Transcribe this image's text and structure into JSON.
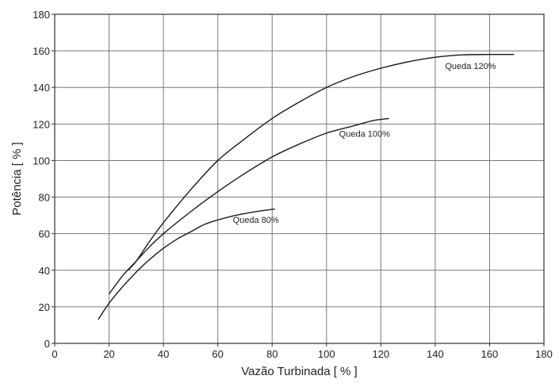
{
  "chart_data": {
    "type": "line",
    "title": "",
    "xlabel": "Vazão Turbinada [ % ]",
    "ylabel": "Potência  [ % ]",
    "xlim": [
      0,
      180
    ],
    "ylim": [
      0,
      180
    ],
    "x_ticks": [
      0,
      20,
      40,
      60,
      80,
      100,
      120,
      140,
      160,
      180
    ],
    "y_ticks": [
      0,
      20,
      40,
      60,
      80,
      100,
      120,
      140,
      160,
      180
    ],
    "grid": true,
    "legend": "none",
    "series": [
      {
        "name": "Queda 80%",
        "label_anchor": [
          74,
          66
        ],
        "points": [
          [
            16,
            13
          ],
          [
            20,
            22
          ],
          [
            25,
            31
          ],
          [
            30,
            39
          ],
          [
            35,
            46
          ],
          [
            40,
            52
          ],
          [
            45,
            57
          ],
          [
            50,
            61
          ],
          [
            55,
            65
          ],
          [
            60,
            67.5
          ],
          [
            65,
            69.5
          ],
          [
            70,
            71
          ],
          [
            75,
            72.3
          ],
          [
            81,
            73.5
          ]
        ]
      },
      {
        "name": "Queda 100%",
        "label_anchor": [
          114,
          113
        ],
        "points": [
          [
            20,
            27
          ],
          [
            25,
            37
          ],
          [
            30,
            45
          ],
          [
            35,
            53
          ],
          [
            40,
            60
          ],
          [
            50,
            72
          ],
          [
            60,
            83
          ],
          [
            70,
            93
          ],
          [
            80,
            102
          ],
          [
            90,
            109
          ],
          [
            100,
            115
          ],
          [
            110,
            119
          ],
          [
            117,
            121.8
          ],
          [
            123,
            123
          ]
        ]
      },
      {
        "name": "Queda 120%",
        "label_anchor": [
          153,
          150
        ],
        "points": [
          [
            27,
            40
          ],
          [
            30,
            45
          ],
          [
            35,
            56
          ],
          [
            40,
            66
          ],
          [
            50,
            84
          ],
          [
            60,
            100
          ],
          [
            70,
            112
          ],
          [
            80,
            123
          ],
          [
            90,
            132
          ],
          [
            100,
            140
          ],
          [
            110,
            146
          ],
          [
            120,
            150.5
          ],
          [
            130,
            154
          ],
          [
            140,
            156.5
          ],
          [
            150,
            157.8
          ],
          [
            160,
            158
          ],
          [
            169,
            158
          ]
        ]
      }
    ]
  }
}
